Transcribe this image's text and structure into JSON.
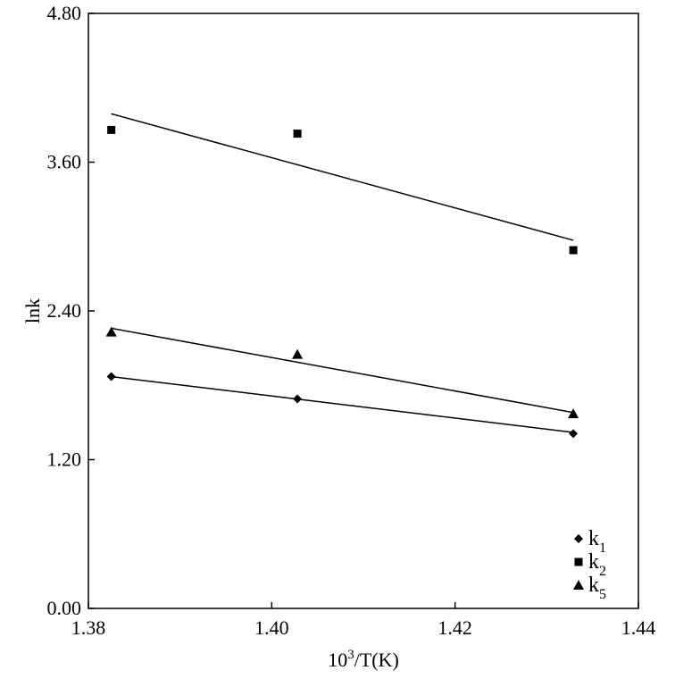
{
  "chart_data": {
    "type": "scatter",
    "title": "",
    "xlabel_base": "10",
    "xlabel_sup": "3",
    "xlabel_rest": "/T(K)",
    "ylabel": "lnk",
    "xlim": [
      1.38,
      1.44
    ],
    "ylim": [
      0.0,
      4.8
    ],
    "x_ticks": [
      "1.38",
      "1.40",
      "1.42",
      "1.44"
    ],
    "y_ticks": [
      "0.00",
      "1.20",
      "2.40",
      "3.60",
      "4.80"
    ],
    "legend_position": "bottom-right",
    "series": [
      {
        "legend_base": "k",
        "legend_sub": "1",
        "marker": "diamond",
        "x": [
          1.3825,
          1.4028,
          1.4329
        ],
        "y": [
          1.87,
          1.69,
          1.41
        ],
        "fit": [
          [
            1.3825,
            1.87
          ],
          [
            1.4329,
            1.42
          ]
        ]
      },
      {
        "legend_base": "k",
        "legend_sub": "2",
        "marker": "square",
        "x": [
          1.3825,
          1.4028,
          1.4329
        ],
        "y": [
          3.86,
          3.83,
          2.89
        ],
        "fit": [
          [
            1.3825,
            3.99
          ],
          [
            1.4329,
            2.97
          ]
        ]
      },
      {
        "legend_base": "k",
        "legend_sub": "5",
        "marker": "triangle",
        "x": [
          1.3825,
          1.4028,
          1.4329
        ],
        "y": [
          2.23,
          2.05,
          1.57
        ],
        "fit": [
          [
            1.3825,
            2.26
          ],
          [
            1.4329,
            1.58
          ]
        ]
      }
    ]
  }
}
